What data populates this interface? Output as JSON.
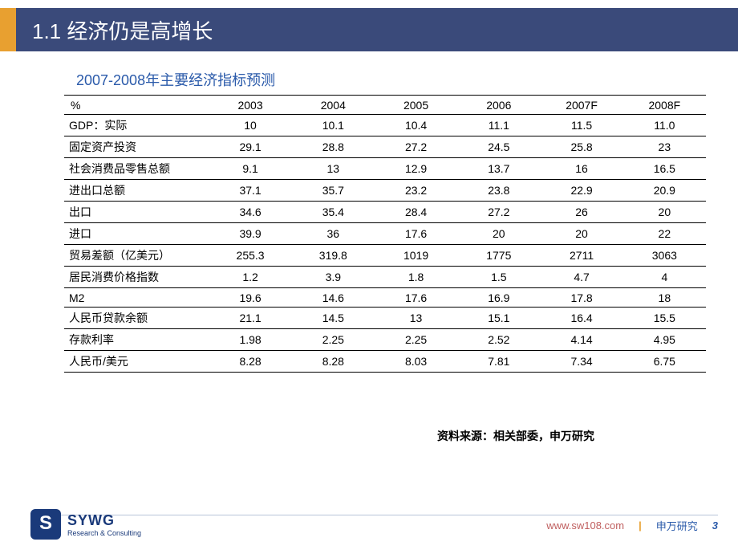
{
  "slide": {
    "title": "1.1 经济仍是高增长",
    "subtitle": "2007-2008年主要经济指标预测",
    "source": "资料来源：相关部委，申万研究"
  },
  "table": {
    "type": "table",
    "unit_label": "%",
    "columns": [
      "2003",
      "2004",
      "2005",
      "2006",
      "2007F",
      "2008F"
    ],
    "rows": [
      {
        "label": "GDP：实际",
        "values": [
          "10",
          "10.1",
          "10.4",
          "11.1",
          "11.5",
          "11.0"
        ]
      },
      {
        "label": "固定资产投资",
        "values": [
          "29.1",
          "28.8",
          "27.2",
          "24.5",
          "25.8",
          "23"
        ]
      },
      {
        "label": "社会消费品零售总额",
        "values": [
          "9.1",
          "13",
          "12.9",
          "13.7",
          "16",
          "16.5"
        ]
      },
      {
        "label": "进出口总额",
        "values": [
          "37.1",
          "35.7",
          "23.2",
          "23.8",
          "22.9",
          "20.9"
        ]
      },
      {
        "label": "出口",
        "values": [
          "34.6",
          "35.4",
          "28.4",
          "27.2",
          "26",
          "20"
        ]
      },
      {
        "label": "进口",
        "values": [
          "39.9",
          "36",
          "17.6",
          "20",
          "20",
          "22"
        ]
      },
      {
        "label": "贸易差额（亿美元）",
        "values": [
          "255.3",
          "319.8",
          "1019",
          "1775",
          "2711",
          "3063"
        ]
      },
      {
        "label": "居民消费价格指数",
        "values": [
          "1.2",
          "3.9",
          "1.8",
          "1.5",
          "4.7",
          "4"
        ]
      },
      {
        "label": "M2",
        "values": [
          "19.6",
          "14.6",
          "17.6",
          "16.9",
          "17.8",
          "18"
        ]
      },
      {
        "label": "人民币贷款余额",
        "values": [
          "21.1",
          "14.5",
          "13",
          "15.1",
          "16.4",
          "15.5"
        ]
      },
      {
        "label": "存款利率",
        "values": [
          "1.98",
          "2.25",
          "2.25",
          "2.52",
          "4.14",
          "4.95"
        ]
      },
      {
        "label": "人民币/美元",
        "values": [
          "8.28",
          "8.28",
          "8.03",
          "7.81",
          "7.34",
          "6.75"
        ]
      }
    ],
    "col_widths": [
      "180px",
      "103px",
      "103px",
      "103px",
      "103px",
      "103px",
      "103px"
    ],
    "border_color": "#000000",
    "text_color": "#000000",
    "fontsize": 14
  },
  "footer": {
    "logo_main": "SYWG",
    "logo_sub": "Research & Consulting",
    "url": "www.sw108.com",
    "brand": "申万研究",
    "page": "3"
  },
  "colors": {
    "header_bg": "#3a4a7a",
    "accent_orange": "#e8a030",
    "subtitle_blue": "#2a5aaa",
    "logo_blue": "#1a3a7a",
    "url_color": "#c06060"
  }
}
